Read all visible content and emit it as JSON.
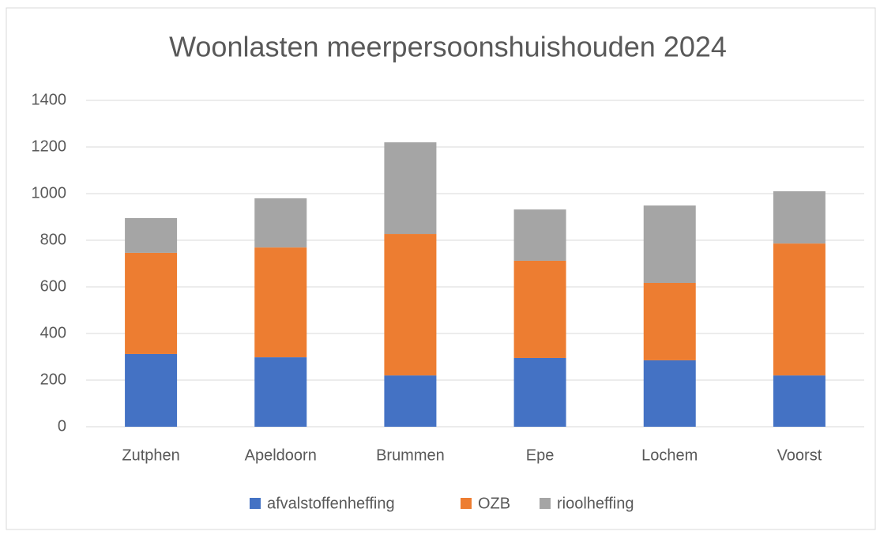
{
  "chart_data": {
    "type": "stacked_bar",
    "title": "Woonlasten meerpersoonshuishouden 2024",
    "categories": [
      "Zutphen",
      "Apeldoorn",
      "Brummen",
      "Epe",
      "Lochem",
      "Voorst"
    ],
    "series": [
      {
        "name": "afvalstoffenheffing",
        "color": "#4472c4",
        "values": [
          312,
          298,
          220,
          295,
          285,
          220
        ]
      },
      {
        "name": "OZB",
        "color": "#ed7d31",
        "values": [
          434,
          471,
          607,
          417,
          332,
          566
        ]
      },
      {
        "name": "rioolheffing",
        "color": "#a5a5a5",
        "values": [
          149,
          211,
          393,
          220,
          332,
          224
        ]
      }
    ],
    "ylim": [
      0,
      1400
    ],
    "yticks": [
      0,
      200,
      400,
      600,
      800,
      1000,
      1200,
      1400
    ],
    "grid": true,
    "legend": "bottom"
  }
}
